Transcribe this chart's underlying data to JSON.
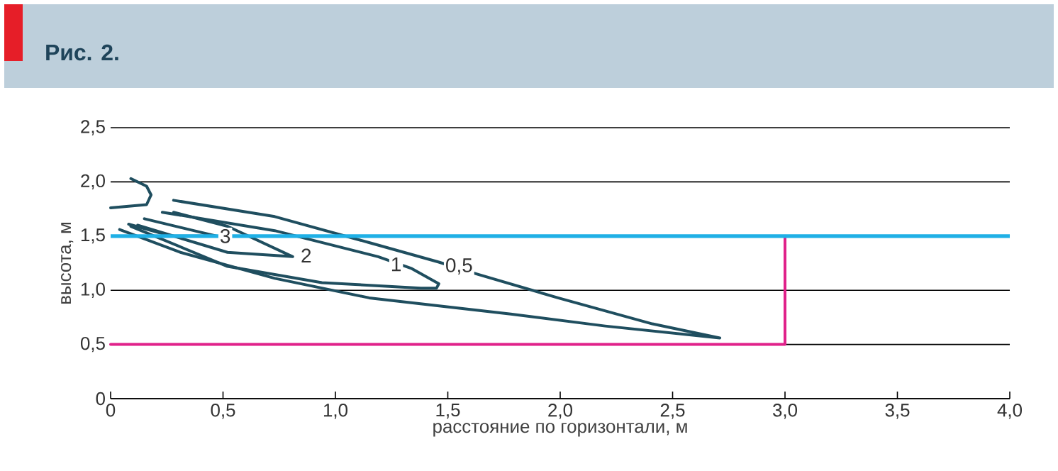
{
  "chart_data": {
    "type": "line",
    "title": "Рис. 2.",
    "xlabel": "расстояние по горизонтали, м",
    "ylabel": "высота, м",
    "xlim": [
      0,
      4
    ],
    "ylim": [
      0,
      2.5
    ],
    "xticks": [
      0,
      {
        "value": 0.5,
        "label": "0,5"
      },
      {
        "value": 1,
        "label": "1,0"
      },
      {
        "value": 1.5,
        "label": "1,5"
      },
      {
        "value": 2,
        "label": "2,0"
      },
      {
        "value": 2.5,
        "label": "2,5"
      },
      {
        "value": 3,
        "label": "3,0"
      },
      {
        "value": 3.5,
        "label": "3,5"
      },
      {
        "value": 4,
        "label": "4,0"
      }
    ],
    "yticks": [
      0,
      {
        "value": 0.5,
        "label": "0,5"
      },
      {
        "value": 1,
        "label": "1,0"
      },
      {
        "value": 1.5,
        "label": "1,5"
      },
      {
        "value": 2,
        "label": "2,0"
      },
      {
        "value": 2.5,
        "label": "2,5"
      }
    ],
    "grid": "y",
    "marker": "none",
    "line_style": "solid",
    "series": [
      {
        "color": "#1f4e5f",
        "x": [
          0.28,
          0.73,
          1.15,
          1.46,
          1.63,
          1.99,
          2.41,
          2.71,
          2.2,
          1.78,
          1.15,
          0.73,
          0.31,
          0.04
        ],
        "values": [
          1.83,
          1.68,
          1.44,
          1.26,
          1.15,
          0.93,
          0.69,
          0.56,
          0.67,
          0.78,
          0.93,
          1.11,
          1.35,
          1.56
        ]
      },
      {
        "color": "#1f4e5f",
        "x": [
          0.23,
          0.73,
          1.19,
          1.34,
          1.46,
          1.45,
          1.38,
          0.94,
          0.52,
          0.09
        ],
        "values": [
          1.72,
          1.55,
          1.31,
          1.2,
          1.06,
          1.02,
          1.02,
          1.07,
          1.22,
          1.59
        ]
      },
      {
        "color": "#1f4e5f",
        "x": [
          0.28,
          0.52,
          0.81,
          0.52,
          0.12
        ],
        "values": [
          1.72,
          1.59,
          1.31,
          1.35,
          1.6
        ]
      },
      {
        "color": "#1f4e5f",
        "x": [
          0.15,
          0.37,
          0.47,
          0.27,
          0.08
        ],
        "values": [
          1.66,
          1.55,
          1.5,
          1.5,
          1.61
        ]
      },
      {
        "color": "#1f4e5f",
        "x": [
          0.09,
          0.16,
          0.18,
          0.16,
          0
        ],
        "values": [
          2.03,
          1.96,
          1.88,
          1.79,
          1.76
        ]
      },
      {
        "color": "#e0218a",
        "x": [
          0,
          3,
          3
        ],
        "values": [
          0.5,
          0.5,
          1.5
        ]
      }
    ],
    "ref_lines": [
      {
        "axis": "y",
        "value": 1.5,
        "color": "#1fb0e6"
      }
    ],
    "annotations": [
      {
        "text": "0,5",
        "x": 1.55,
        "y": 1.22
      },
      {
        "text": "1",
        "x": 1.27,
        "y": 1.24
      },
      {
        "text": "2",
        "x": 0.87,
        "y": 1.32
      },
      {
        "text": "3",
        "x": 0.51,
        "y": 1.5
      }
    ]
  }
}
